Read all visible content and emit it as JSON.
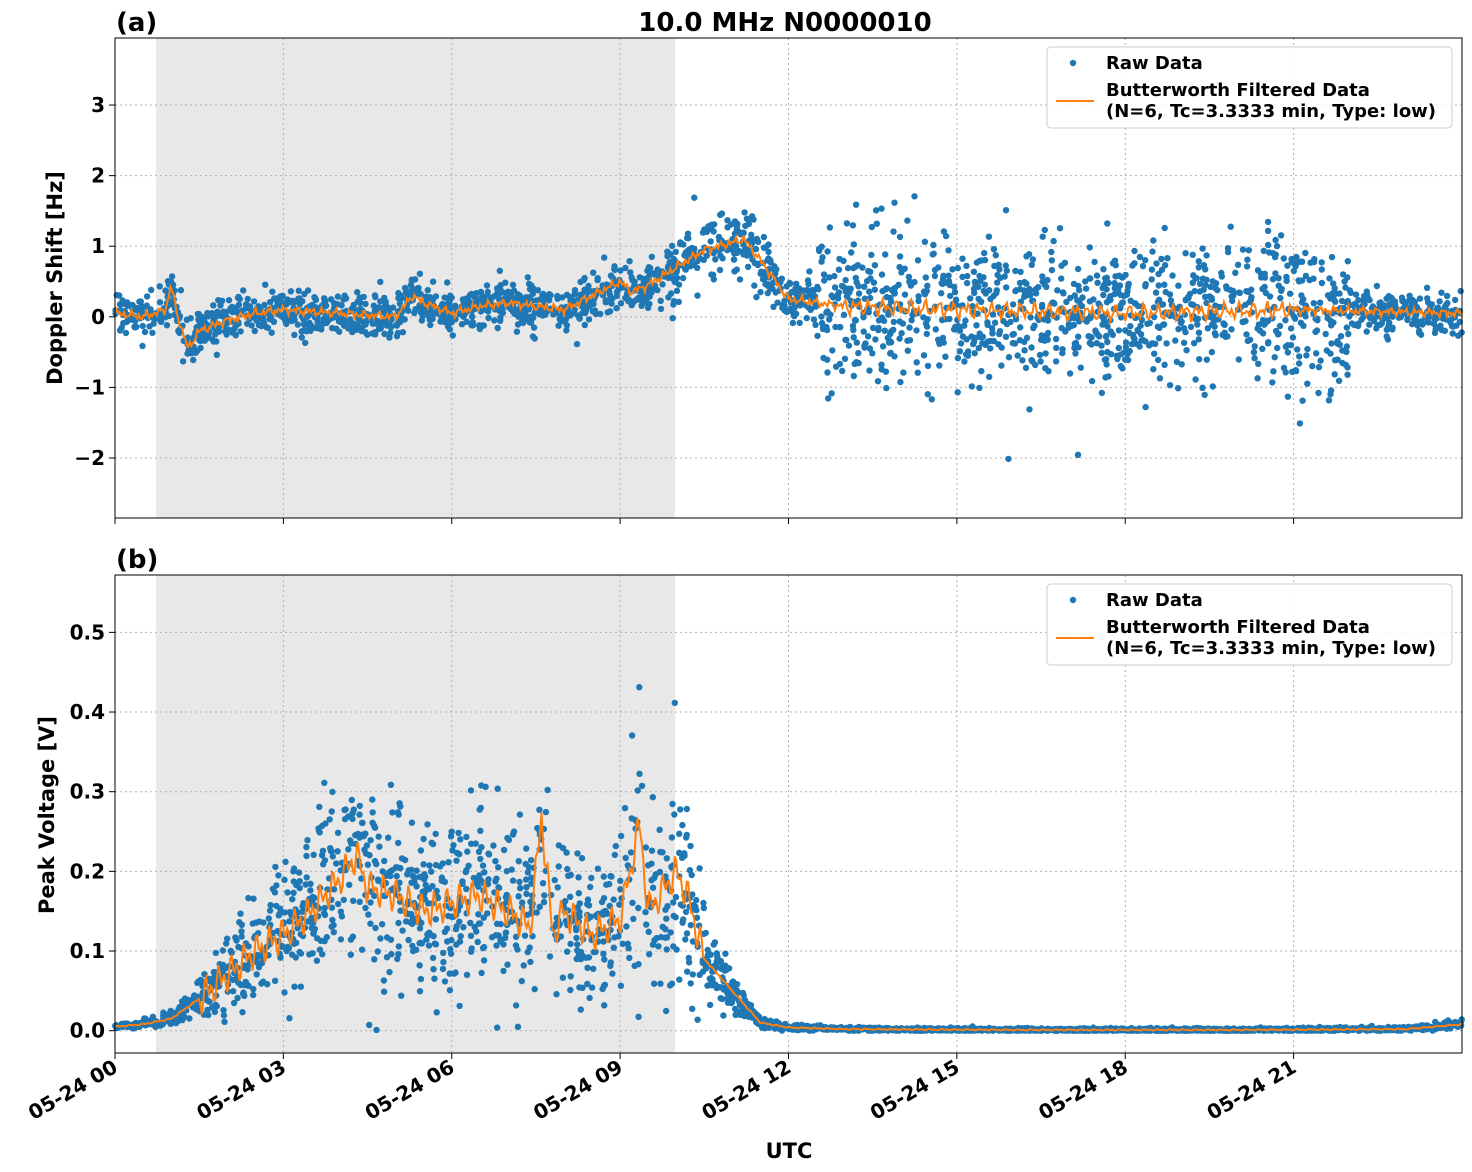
{
  "figure": {
    "title": "10.0 MHz N0000010",
    "xlabel": "UTC"
  },
  "colors": {
    "raw": "#1f77b4",
    "filtered": "#ff7f0e",
    "shade": "#e8e8e8"
  },
  "chart_data": [
    {
      "type": "scatter",
      "panel_label": "(a)",
      "title": "10.0 MHz N0000010",
      "xlabel": "",
      "ylabel": "Doppler Shift [Hz]",
      "xlim": [
        0,
        24
      ],
      "ylim": [
        -2.85,
        3.95
      ],
      "yticks": [
        3,
        2,
        1,
        0,
        -1,
        -2
      ],
      "ytick_labels": [
        "3",
        "2",
        "1",
        "0",
        "−1",
        "−2"
      ],
      "grid": true,
      "legend_position": "top-right",
      "shaded_x_range_hours": [
        0.73,
        9.98
      ],
      "series": [
        {
          "name": "Raw Data",
          "kind": "points"
        },
        {
          "name": "Butterworth Filtered Data",
          "kind": "line",
          "x_hours": [
            0,
            0.5,
            0.9,
            1.0,
            1.1,
            1.3,
            1.5,
            2.0,
            2.5,
            3.0,
            4.0,
            5.0,
            5.3,
            5.5,
            6.0,
            6.5,
            7.0,
            8.0,
            8.5,
            9.0,
            9.2,
            9.5,
            10.0,
            10.5,
            11.0,
            11.2,
            11.5,
            12.0,
            13.0,
            15.0,
            18.0,
            21.0,
            24.0
          ],
          "y": [
            0.05,
            0.0,
            0.1,
            0.45,
            0.05,
            -0.45,
            -0.2,
            -0.05,
            0.05,
            0.1,
            0.05,
            0.0,
            0.3,
            0.2,
            0.05,
            0.15,
            0.2,
            0.1,
            0.3,
            0.5,
            0.35,
            0.45,
            0.7,
            0.95,
            1.05,
            1.1,
            0.8,
            0.25,
            0.15,
            0.1,
            0.05,
            0.1,
            0.05
          ]
        }
      ],
      "legend_entries": [
        "Raw Data",
        "Butterworth Filtered Data",
        "(N=6, Tc=3.3333 min, Type: low)"
      ]
    },
    {
      "type": "scatter",
      "panel_label": "(b)",
      "title": "",
      "xlabel": "UTC",
      "ylabel": "Peak Voltage [V]",
      "xlim": [
        0,
        24
      ],
      "ylim": [
        -0.028,
        0.572
      ],
      "yticks": [
        0.5,
        0.4,
        0.3,
        0.2,
        0.1,
        0.0
      ],
      "ytick_labels": [
        "0.5",
        "0.4",
        "0.3",
        "0.2",
        "0.1",
        "0.0"
      ],
      "grid": true,
      "legend_position": "top-right",
      "shaded_x_range_hours": [
        0.73,
        9.98
      ],
      "series": [
        {
          "name": "Raw Data",
          "kind": "points"
        },
        {
          "name": "Butterworth Filtered Data",
          "kind": "line",
          "x_hours": [
            0,
            0.5,
            1.0,
            1.5,
            2.0,
            2.5,
            3.0,
            3.5,
            4.0,
            4.3,
            4.5,
            5.0,
            5.5,
            6.0,
            6.5,
            7.0,
            7.4,
            7.6,
            7.8,
            8.0,
            8.5,
            9.0,
            9.35,
            9.5,
            10.0,
            10.2,
            10.5,
            11.0,
            11.5,
            12.0,
            13.0,
            16.0,
            20.0,
            23.0,
            24.0
          ],
          "y": [
            0.005,
            0.008,
            0.015,
            0.04,
            0.07,
            0.1,
            0.12,
            0.15,
            0.19,
            0.22,
            0.18,
            0.17,
            0.15,
            0.16,
            0.17,
            0.15,
            0.13,
            0.27,
            0.12,
            0.15,
            0.12,
            0.14,
            0.26,
            0.15,
            0.2,
            0.17,
            0.09,
            0.05,
            0.01,
            0.004,
            0.002,
            0.001,
            0.001,
            0.002,
            0.008
          ]
        }
      ],
      "legend_entries": [
        "Raw Data",
        "Butterworth Filtered Data",
        "(N=6, Tc=3.3333 min, Type: low)"
      ]
    }
  ],
  "x_axis": {
    "tick_hours": [
      0,
      3,
      6,
      9,
      12,
      15,
      18,
      21
    ],
    "tick_labels": [
      "05-24 00",
      "05-24 03",
      "05-24 06",
      "05-24 09",
      "05-24 12",
      "05-24 15",
      "05-24 18",
      "05-24 21"
    ]
  }
}
